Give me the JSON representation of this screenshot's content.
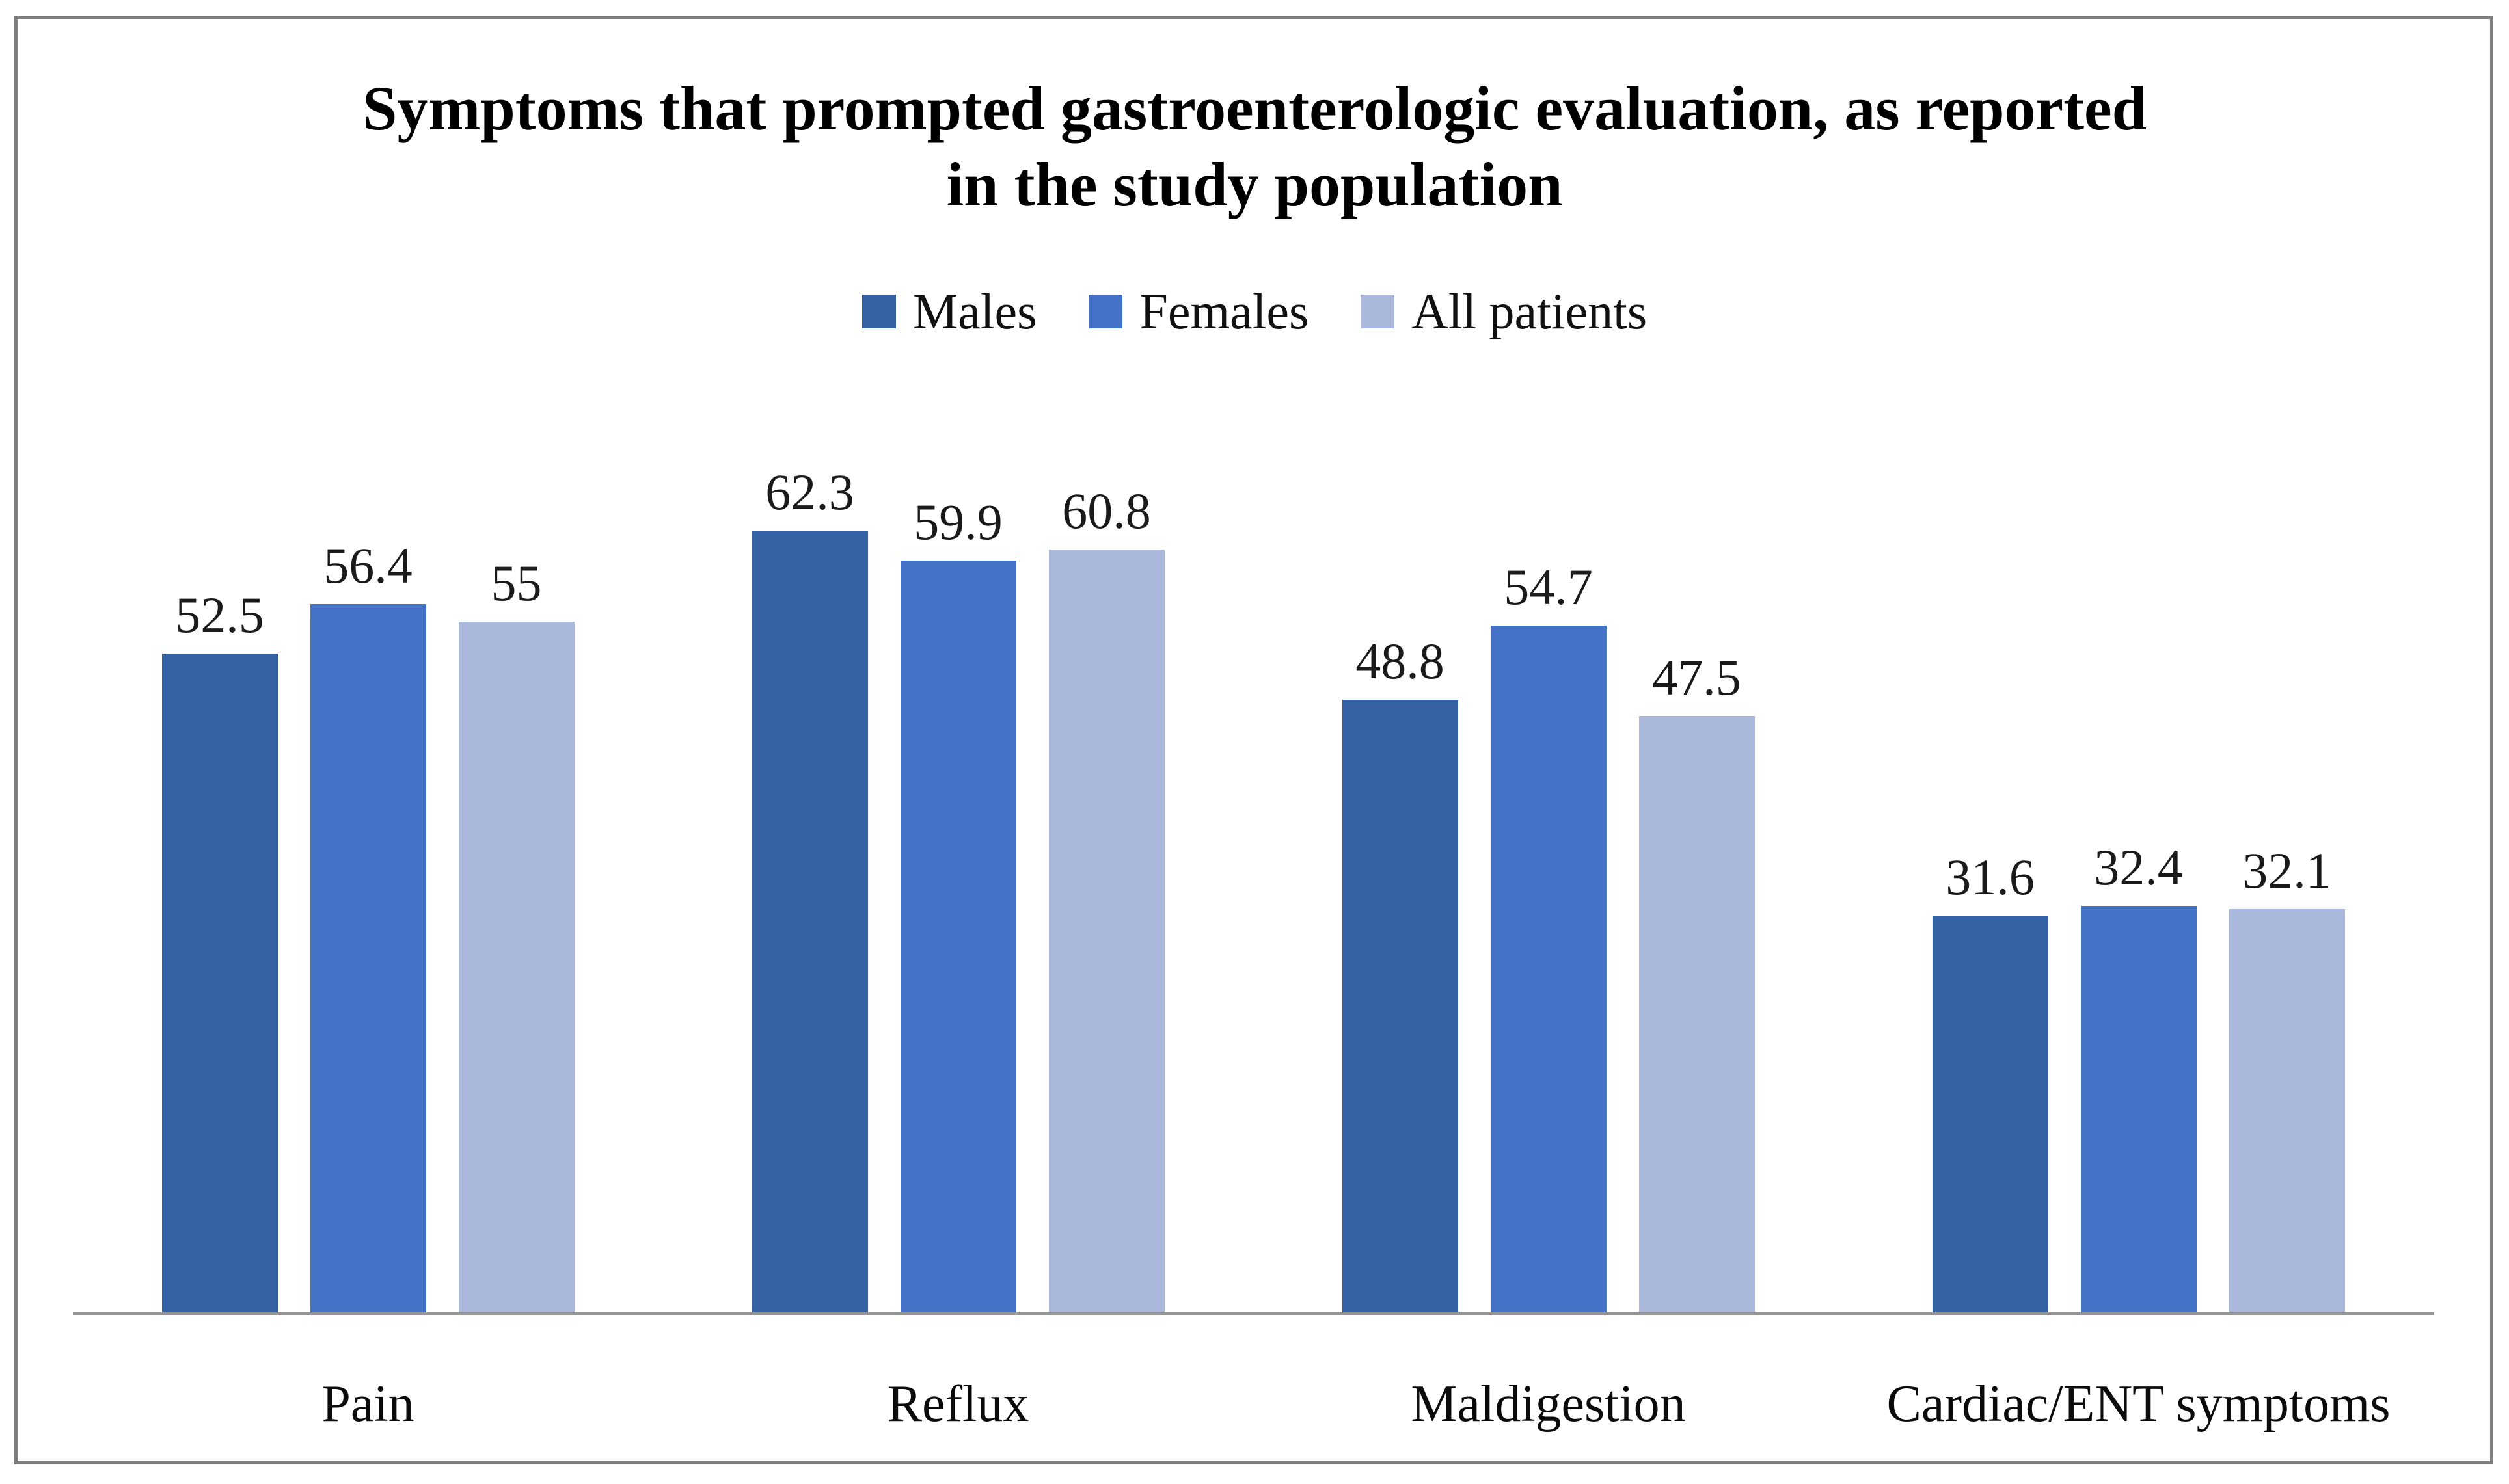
{
  "figure": {
    "title_lines": [
      "Symptoms that prompted gastroenterologic evaluation, as reported",
      "in the study population"
    ]
  },
  "chart_data": {
    "type": "bar",
    "title": "Symptoms that prompted gastroenterologic evaluation, as reported in the study population",
    "categories": [
      "Pain",
      "Reflux",
      "Maldigestion",
      "Cardiac/ENT symptoms"
    ],
    "series": [
      {
        "name": "Males",
        "color": "#3561A5",
        "values": [
          52.5,
          62.3,
          48.8,
          31.6
        ]
      },
      {
        "name": "Females",
        "color": "#4472C6",
        "values": [
          56.4,
          59.9,
          54.7,
          32.4
        ]
      },
      {
        "name": "All patients",
        "color": "#AAB8DC",
        "values": [
          55,
          60.8,
          47.5,
          32.1
        ]
      }
    ],
    "xlabel": "",
    "ylabel": "",
    "ylim": [
      0,
      70
    ],
    "grid": false,
    "legend_position": "top",
    "data_labels": true,
    "axis_color": "#949494",
    "frame_border_color": "#7e7e7e"
  }
}
